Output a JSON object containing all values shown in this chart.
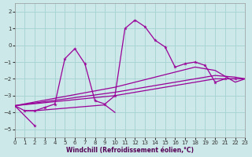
{
  "xlabel": "Windchill (Refroidissement éolien,°C)",
  "bg_color": "#cce8e8",
  "grid_color": "#aad4d4",
  "line_color": "#990099",
  "xlim": [
    0,
    23
  ],
  "ylim": [
    -5.5,
    2.5
  ],
  "yticks": [
    -5,
    -4,
    -3,
    -2,
    -1,
    0,
    1,
    2
  ],
  "xticks": [
    0,
    1,
    2,
    3,
    4,
    5,
    6,
    7,
    8,
    9,
    10,
    11,
    12,
    13,
    14,
    15,
    16,
    17,
    18,
    19,
    20,
    21,
    22,
    23
  ],
  "main_x": [
    1,
    2,
    3,
    4,
    5,
    6,
    7,
    8,
    9,
    10,
    11,
    12,
    13,
    14,
    15,
    16,
    17,
    18,
    19,
    20,
    21,
    22
  ],
  "main_y": [
    -3.9,
    -3.9,
    -3.7,
    -3.5,
    -0.8,
    -0.2,
    -1.1,
    -3.3,
    -3.5,
    -3.0,
    1.0,
    1.5,
    1.1,
    0.3,
    -0.1,
    -1.3,
    -1.1,
    -1.0,
    -1.2,
    -2.2,
    -2.0,
    -2.0
  ],
  "line2_x": [
    0,
    2
  ],
  "line2_y": [
    -3.6,
    -4.8
  ],
  "line3_x": [
    0,
    1,
    2,
    3,
    4,
    5,
    6,
    7,
    8,
    9,
    10
  ],
  "line3_y": [
    -3.6,
    -3.9,
    -3.9,
    -3.85,
    -3.8,
    -3.75,
    -3.7,
    -3.65,
    -3.6,
    -3.55,
    -4.0
  ],
  "diag1_x": [
    0,
    10,
    20,
    22,
    23
  ],
  "diag1_y": [
    -3.6,
    -3.0,
    -2.0,
    -2.0,
    -2.0
  ],
  "diag2_x": [
    0,
    10,
    20,
    22,
    23
  ],
  "diag2_y": [
    -3.6,
    -2.8,
    -1.8,
    -1.9,
    -2.0
  ],
  "diag3_x": [
    0,
    10,
    18,
    20,
    22,
    23
  ],
  "diag3_y": [
    -3.6,
    -2.5,
    -1.3,
    -1.5,
    -2.2,
    -2.0
  ]
}
